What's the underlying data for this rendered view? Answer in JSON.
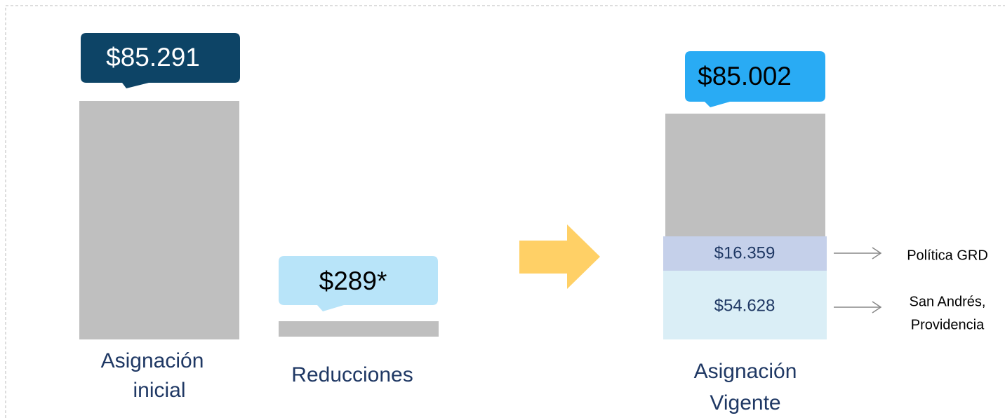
{
  "columns": [
    {
      "value": "$85.291",
      "label": [
        "Asignación",
        "inicial"
      ]
    },
    {
      "value": "$289*",
      "label": [
        "Reducciones"
      ]
    },
    {
      "value": "$85.002",
      "label": [
        "Asignación",
        "Vigente"
      ],
      "segments": [
        {
          "value": "$16.359",
          "note": [
            "Política GRD"
          ]
        },
        {
          "value": "$54.628",
          "note": [
            "San Andrés,",
            "Providencia"
          ]
        }
      ]
    }
  ]
}
